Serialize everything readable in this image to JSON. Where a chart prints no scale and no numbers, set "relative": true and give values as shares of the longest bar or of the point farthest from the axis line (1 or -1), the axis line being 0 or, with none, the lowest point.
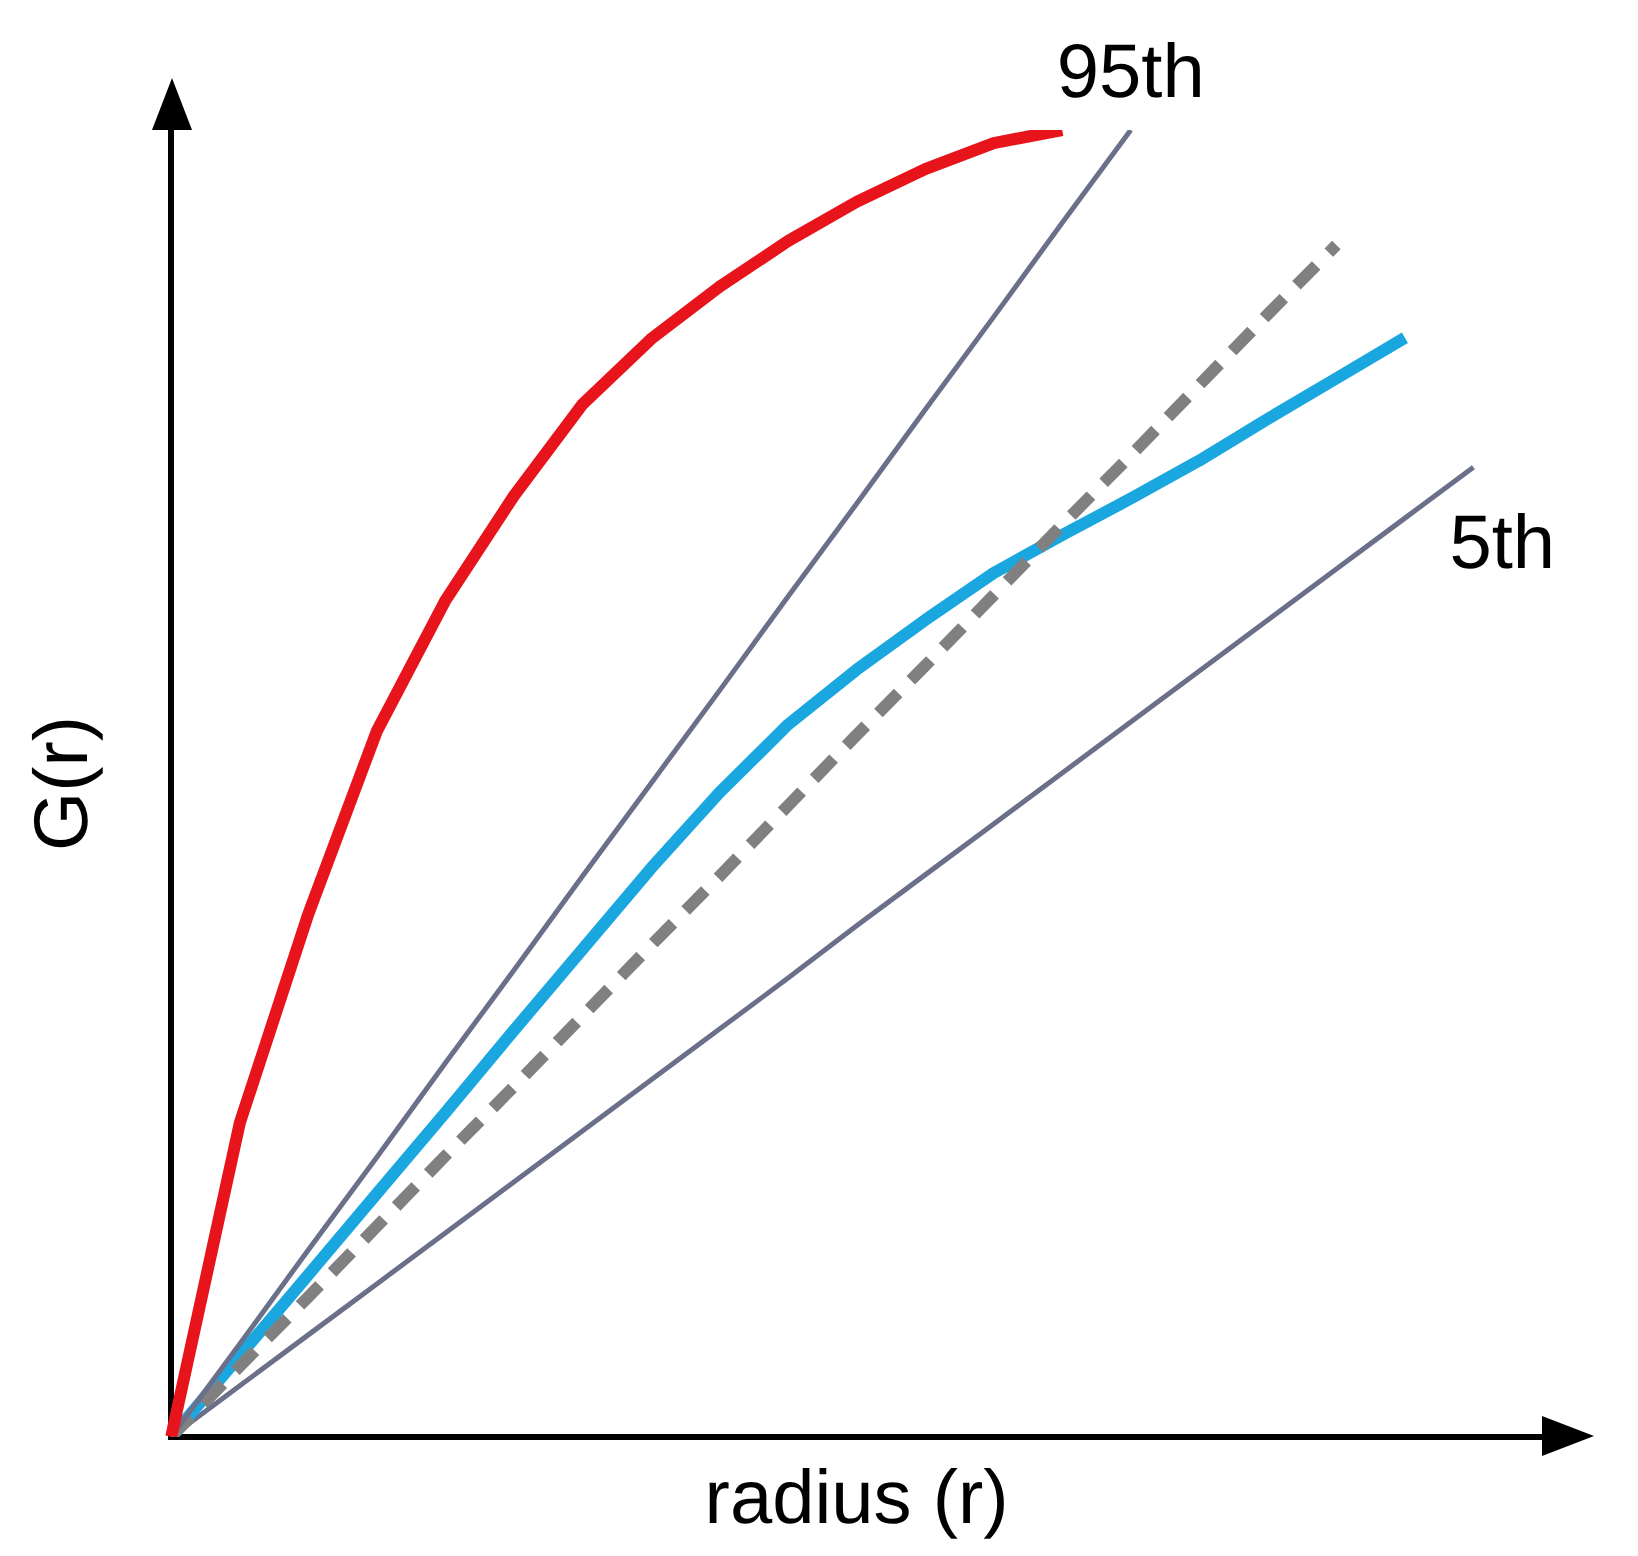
{
  "chart_data": {
    "type": "line",
    "relative": true,
    "xlabel": "radius (r)",
    "ylabel": "G(r)",
    "legend": false,
    "marker": "none",
    "line_style": "solid",
    "categories": [
      null,
      null,
      null,
      null,
      null,
      null,
      null,
      null,
      null,
      null,
      null,
      null,
      null,
      null,
      null,
      null,
      null,
      null,
      null,
      null,
      null
    ],
    "series": [
      {
        "color": "#e8141b",
        "values": [
          0,
          0.24,
          0.4,
          0.54,
          0.64,
          0.72,
          0.79,
          0.84,
          0.88,
          0.915,
          0.945,
          0.97,
          0.99,
          1.0,
          null,
          null,
          null,
          null,
          null,
          null,
          null
        ]
      },
      {
        "name": "95th",
        "color": "#6a6f8a",
        "values": [
          0,
          0.071,
          0.143,
          0.214,
          0.286,
          0.357,
          0.429,
          0.5,
          0.571,
          0.643,
          0.714,
          0.786,
          0.857,
          0.929,
          1.0,
          null,
          null,
          null,
          null,
          null,
          null
        ]
      },
      {
        "color": "#808080",
        "line_style": "dashed",
        "values": [
          0,
          0.054,
          0.107,
          0.161,
          0.215,
          0.268,
          0.322,
          0.376,
          0.429,
          0.483,
          0.537,
          0.59,
          0.644,
          0.698,
          0.751,
          0.805,
          0.859,
          0.912,
          null,
          null,
          null
        ]
      },
      {
        "color": "#1aa7e0",
        "values": [
          0,
          0.062,
          0.124,
          0.186,
          0.248,
          0.311,
          0.373,
          0.435,
          0.493,
          0.545,
          0.587,
          0.625,
          0.661,
          0.69,
          0.718,
          0.747,
          0.779,
          0.81,
          0.841,
          null,
          null
        ]
      },
      {
        "name": "5th",
        "color": "#6a6f8a",
        "values": [
          0,
          0.039,
          0.078,
          0.117,
          0.156,
          0.195,
          0.234,
          0.273,
          0.312,
          0.351,
          0.391,
          0.43,
          0.469,
          0.508,
          0.547,
          0.586,
          0.625,
          0.664,
          0.703,
          0.742,
          null
        ]
      }
    ]
  }
}
